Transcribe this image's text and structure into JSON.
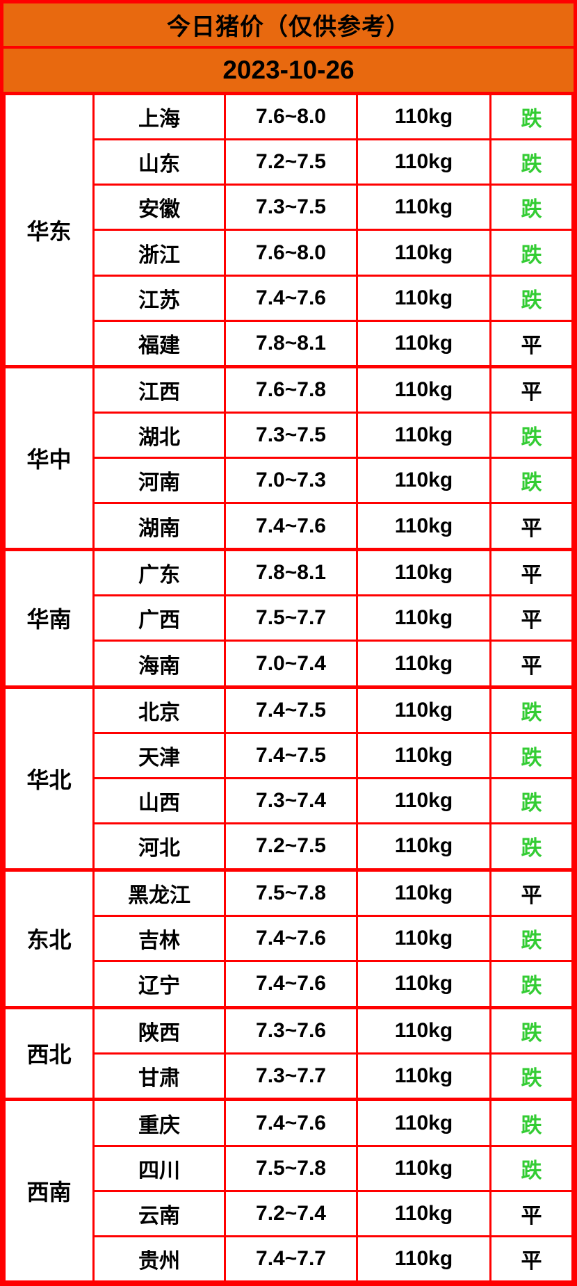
{
  "header": {
    "title": "今日猪价（仅供参考）",
    "date": "2023-10-26"
  },
  "colors": {
    "header_orange": "#E8690F",
    "grid_red": "#FF0000",
    "fall_green": "#33CC33",
    "flat_black": "#000000"
  },
  "table": {
    "status_colors": {
      "跌": "#33CC33",
      "平": "#000000"
    },
    "regions": [
      {
        "name": "华东",
        "rows": [
          {
            "province": "上海",
            "price": "7.6~8.0",
            "weight": "110kg",
            "status": "跌"
          },
          {
            "province": "山东",
            "price": "7.2~7.5",
            "weight": "110kg",
            "status": "跌"
          },
          {
            "province": "安徽",
            "price": "7.3~7.5",
            "weight": "110kg",
            "status": "跌"
          },
          {
            "province": "浙江",
            "price": "7.6~8.0",
            "weight": "110kg",
            "status": "跌"
          },
          {
            "province": "江苏",
            "price": "7.4~7.6",
            "weight": "110kg",
            "status": "跌"
          },
          {
            "province": "福建",
            "price": "7.8~8.1",
            "weight": "110kg",
            "status": "平"
          }
        ]
      },
      {
        "name": "华中",
        "rows": [
          {
            "province": "江西",
            "price": "7.6~7.8",
            "weight": "110kg",
            "status": "平"
          },
          {
            "province": "湖北",
            "price": "7.3~7.5",
            "weight": "110kg",
            "status": "跌"
          },
          {
            "province": "河南",
            "price": "7.0~7.3",
            "weight": "110kg",
            "status": "跌"
          },
          {
            "province": "湖南",
            "price": "7.4~7.6",
            "weight": "110kg",
            "status": "平"
          }
        ]
      },
      {
        "name": "华南",
        "rows": [
          {
            "province": "广东",
            "price": "7.8~8.1",
            "weight": "110kg",
            "status": "平"
          },
          {
            "province": "广西",
            "price": "7.5~7.7",
            "weight": "110kg",
            "status": "平"
          },
          {
            "province": "海南",
            "price": "7.0~7.4",
            "weight": "110kg",
            "status": "平"
          }
        ]
      },
      {
        "name": "华北",
        "rows": [
          {
            "province": "北京",
            "price": "7.4~7.5",
            "weight": "110kg",
            "status": "跌"
          },
          {
            "province": "天津",
            "price": "7.4~7.5",
            "weight": "110kg",
            "status": "跌"
          },
          {
            "province": "山西",
            "price": "7.3~7.4",
            "weight": "110kg",
            "status": "跌"
          },
          {
            "province": "河北",
            "price": "7.2~7.5",
            "weight": "110kg",
            "status": "跌"
          }
        ]
      },
      {
        "name": "东北",
        "rows": [
          {
            "province": "黑龙江",
            "price": "7.5~7.8",
            "weight": "110kg",
            "status": "平"
          },
          {
            "province": "吉林",
            "price": "7.4~7.6",
            "weight": "110kg",
            "status": "跌"
          },
          {
            "province": "辽宁",
            "price": "7.4~7.6",
            "weight": "110kg",
            "status": "跌"
          }
        ]
      },
      {
        "name": "西北",
        "rows": [
          {
            "province": "陕西",
            "price": "7.3~7.6",
            "weight": "110kg",
            "status": "跌"
          },
          {
            "province": "甘肃",
            "price": "7.3~7.7",
            "weight": "110kg",
            "status": "跌"
          }
        ]
      },
      {
        "name": "西南",
        "rows": [
          {
            "province": "重庆",
            "price": "7.4~7.6",
            "weight": "110kg",
            "status": "跌"
          },
          {
            "province": "四川",
            "price": "7.5~7.8",
            "weight": "110kg",
            "status": "跌"
          },
          {
            "province": "云南",
            "price": "7.2~7.4",
            "weight": "110kg",
            "status": "平"
          },
          {
            "province": "贵州",
            "price": "7.4~7.7",
            "weight": "110kg",
            "status": "平"
          }
        ]
      }
    ]
  }
}
